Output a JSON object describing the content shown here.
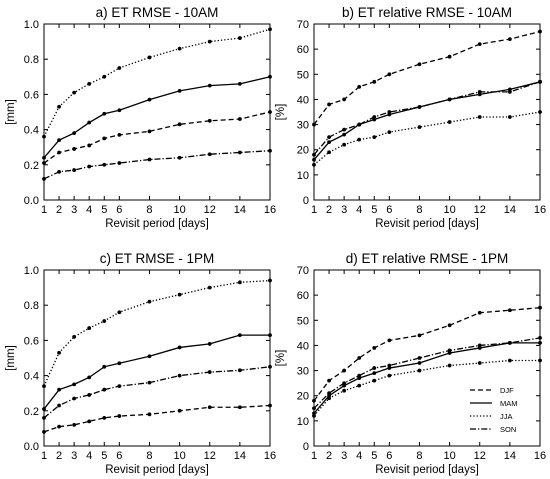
{
  "chart_data": [
    {
      "type": "line",
      "title": "a) ET RMSE - 10AM",
      "xlabel": "Revisit period [days]",
      "ylabel": "[mm]",
      "xlim": [
        1,
        16
      ],
      "ylim": [
        0,
        1.0
      ],
      "xticks": [
        1,
        2,
        3,
        4,
        5,
        6,
        8,
        10,
        12,
        14,
        16
      ],
      "yticks": [
        "0.0",
        "0.2",
        "0.4",
        "0.6",
        "0.8",
        "1.0"
      ],
      "x": [
        1,
        2,
        3,
        4,
        5,
        6,
        8,
        10,
        12,
        14,
        16
      ],
      "series": [
        {
          "name": "DJF",
          "style": "dashed",
          "values": [
            0.21,
            0.27,
            0.29,
            0.31,
            0.35,
            0.37,
            0.39,
            0.43,
            0.45,
            0.46,
            0.5
          ]
        },
        {
          "name": "MAM",
          "style": "solid",
          "values": [
            0.24,
            0.34,
            0.38,
            0.44,
            0.49,
            0.51,
            0.57,
            0.62,
            0.65,
            0.66,
            0.7
          ]
        },
        {
          "name": "JJA",
          "style": "dotted",
          "values": [
            0.36,
            0.53,
            0.61,
            0.66,
            0.7,
            0.75,
            0.81,
            0.86,
            0.9,
            0.92,
            0.97
          ]
        },
        {
          "name": "SON",
          "style": "dashdot",
          "values": [
            0.12,
            0.16,
            0.17,
            0.19,
            0.2,
            0.21,
            0.23,
            0.24,
            0.26,
            0.27,
            0.28
          ]
        }
      ]
    },
    {
      "type": "line",
      "title": "b) ET relative RMSE - 10AM",
      "xlabel": "Revisit period [days]",
      "ylabel": "[%]",
      "xlim": [
        1,
        16
      ],
      "ylim": [
        0,
        70
      ],
      "xticks": [
        1,
        2,
        3,
        4,
        5,
        6,
        8,
        10,
        12,
        14,
        16
      ],
      "yticks": [
        "0",
        "10",
        "20",
        "30",
        "40",
        "50",
        "60",
        "70"
      ],
      "x": [
        1,
        2,
        3,
        4,
        5,
        6,
        8,
        10,
        12,
        14,
        16
      ],
      "series": [
        {
          "name": "DJF",
          "style": "dashed",
          "values": [
            30,
            38,
            40,
            45,
            47,
            50,
            54,
            57,
            62,
            64,
            67
          ]
        },
        {
          "name": "MAM",
          "style": "solid",
          "values": [
            16,
            23,
            26,
            30,
            32,
            34,
            37,
            40,
            42,
            44,
            47
          ]
        },
        {
          "name": "JJA",
          "style": "dotted",
          "values": [
            14,
            19,
            22,
            24,
            25,
            27,
            29,
            31,
            33,
            33,
            35
          ]
        },
        {
          "name": "SON",
          "style": "dashdot",
          "values": [
            18,
            25,
            28,
            30,
            33,
            35,
            37,
            40,
            43,
            43,
            47
          ]
        }
      ]
    },
    {
      "type": "line",
      "title": "c) ET RMSE - 1PM",
      "xlabel": "Revisit period [days]",
      "ylabel": "[mm]",
      "xlim": [
        1,
        16
      ],
      "ylim": [
        0,
        1.0
      ],
      "xticks": [
        1,
        2,
        3,
        4,
        5,
        6,
        8,
        10,
        12,
        14,
        16
      ],
      "yticks": [
        "0.0",
        "0.2",
        "0.4",
        "0.6",
        "0.8",
        "1.0"
      ],
      "x": [
        1,
        2,
        3,
        4,
        5,
        6,
        8,
        10,
        12,
        14,
        16
      ],
      "series": [
        {
          "name": "DJF",
          "style": "dashed",
          "values": [
            0.08,
            0.11,
            0.12,
            0.14,
            0.16,
            0.17,
            0.18,
            0.2,
            0.22,
            0.22,
            0.23
          ]
        },
        {
          "name": "MAM",
          "style": "solid",
          "values": [
            0.21,
            0.32,
            0.35,
            0.39,
            0.45,
            0.47,
            0.51,
            0.56,
            0.58,
            0.63,
            0.63
          ]
        },
        {
          "name": "JJA",
          "style": "dotted",
          "values": [
            0.34,
            0.53,
            0.62,
            0.67,
            0.71,
            0.76,
            0.82,
            0.86,
            0.9,
            0.93,
            0.94
          ]
        },
        {
          "name": "SON",
          "style": "dashdot",
          "values": [
            0.16,
            0.23,
            0.27,
            0.29,
            0.32,
            0.34,
            0.36,
            0.4,
            0.42,
            0.43,
            0.45
          ]
        }
      ]
    },
    {
      "type": "line",
      "title": "d) ET relative RMSE - 1PM",
      "xlabel": "Revisit period [days]",
      "ylabel": "[%]",
      "xlim": [
        1,
        16
      ],
      "ylim": [
        0,
        70
      ],
      "xticks": [
        1,
        2,
        3,
        4,
        5,
        6,
        8,
        10,
        12,
        14,
        16
      ],
      "yticks": [
        "0",
        "10",
        "20",
        "30",
        "40",
        "50",
        "60",
        "70"
      ],
      "x": [
        1,
        2,
        3,
        4,
        5,
        6,
        8,
        10,
        12,
        14,
        16
      ],
      "legend": {
        "position": "lower-right",
        "entries": [
          "DJF",
          "MAM",
          "JJA",
          "SON"
        ]
      },
      "series": [
        {
          "name": "DJF",
          "style": "dashed",
          "values": [
            18,
            26,
            30,
            35,
            39,
            42,
            44,
            48,
            53,
            54,
            55
          ]
        },
        {
          "name": "MAM",
          "style": "solid",
          "values": [
            13,
            20,
            24,
            27,
            29,
            31,
            33,
            37,
            39,
            41,
            41
          ]
        },
        {
          "name": "JJA",
          "style": "dotted",
          "values": [
            12,
            19,
            22,
            24,
            26,
            28,
            30,
            32,
            33,
            34,
            34
          ]
        },
        {
          "name": "SON",
          "style": "dashdot",
          "values": [
            15,
            21,
            25,
            28,
            31,
            32,
            35,
            38,
            40,
            41,
            43
          ]
        }
      ]
    }
  ]
}
